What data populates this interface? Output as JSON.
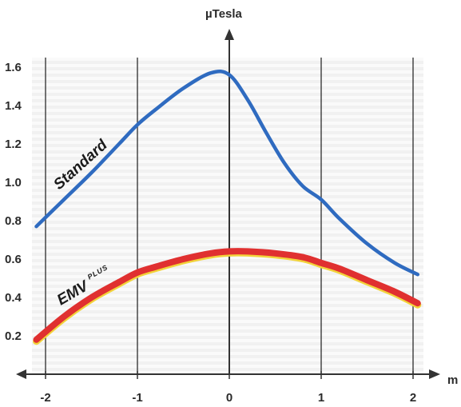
{
  "chart_data": {
    "type": "line",
    "title": "",
    "xlabel": "m",
    "ylabel": "µTesla",
    "xlim": [
      -2.1,
      2.1
    ],
    "ylim": [
      0.1,
      1.75
    ],
    "x_ticks": [
      -2,
      -1,
      0,
      1,
      2
    ],
    "x_tick_labels": [
      "-2",
      "-1",
      "0",
      "1",
      "2"
    ],
    "y_ticks": [
      0.2,
      0.4,
      0.6,
      0.8,
      1.0,
      1.2,
      1.4,
      1.6
    ],
    "y_tick_labels": [
      "0.2",
      "0.4",
      "0.6",
      "0.8",
      "1.0",
      "1.2",
      "1.4",
      "1.6"
    ],
    "grid": "vertical lines and light horizontal bands",
    "series": [
      {
        "name": "Standard",
        "color": "#2f6bc0",
        "x": [
          -2.1,
          -1.8,
          -1.5,
          -1.2,
          -1.0,
          -0.8,
          -0.5,
          -0.2,
          0.0,
          0.2,
          0.4,
          0.6,
          0.8,
          1.0,
          1.2,
          1.5,
          1.8,
          2.05
        ],
        "y": [
          0.77,
          0.91,
          1.05,
          1.2,
          1.3,
          1.38,
          1.49,
          1.57,
          1.56,
          1.43,
          1.26,
          1.1,
          0.98,
          0.91,
          0.81,
          0.68,
          0.58,
          0.52
        ]
      },
      {
        "name": "EMV",
        "name_superscript": "PLUS",
        "color": "#e03030",
        "x": [
          -2.1,
          -1.8,
          -1.5,
          -1.2,
          -1.0,
          -0.8,
          -0.5,
          -0.2,
          0.0,
          0.2,
          0.5,
          0.8,
          1.0,
          1.2,
          1.5,
          1.8,
          2.05
        ],
        "y": [
          0.18,
          0.3,
          0.4,
          0.48,
          0.53,
          0.56,
          0.6,
          0.63,
          0.64,
          0.64,
          0.63,
          0.61,
          0.58,
          0.55,
          0.49,
          0.43,
          0.37
        ]
      }
    ]
  }
}
